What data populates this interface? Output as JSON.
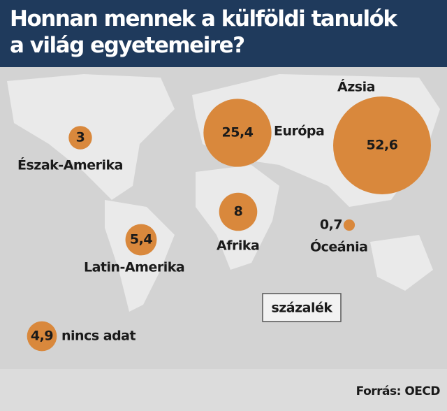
{
  "chart_data": {
    "type": "bubble",
    "title": "Honnan mennek a külföldi tanulók a világ egyetemeire?",
    "categories": [
      "Észak-Amerika",
      "Európa",
      "Ázsia",
      "Afrika",
      "Latin-Amerika",
      "Óceánia",
      "nincs adat"
    ],
    "values": [
      3,
      25.4,
      52.6,
      8,
      5.4,
      0.7,
      4.9
    ],
    "value_labels": [
      "3",
      "25,4",
      "52,6",
      "8",
      "5,4",
      "0,7",
      "4,9"
    ],
    "color": "#d9883c",
    "unit": "százalék",
    "source": "Forrás: OECD"
  }
}
